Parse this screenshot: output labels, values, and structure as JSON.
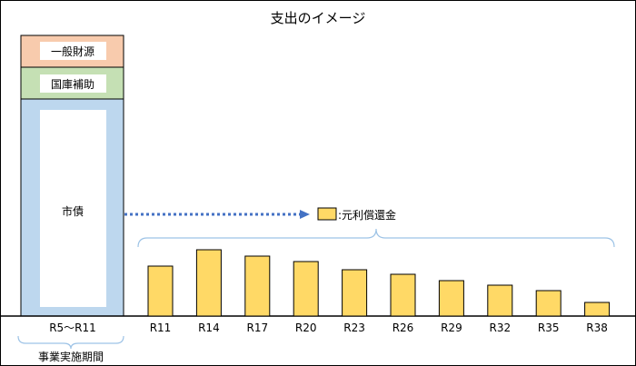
{
  "title": "支出のイメージ",
  "funding": {
    "segments": [
      {
        "label": "一般財源",
        "color": "#f8cbad"
      },
      {
        "label": "国庫補助",
        "color": "#c5e0b4"
      },
      {
        "label": "市債",
        "color": "#bdd7ee"
      }
    ],
    "period_label": "R5～R11",
    "caption": "事業実施期間"
  },
  "legend": {
    "label": ":元利償還金",
    "color": "#ffd966"
  },
  "chart_data": {
    "type": "bar",
    "categories": [
      "R11",
      "R14",
      "R17",
      "R20",
      "R23",
      "R26",
      "R29",
      "R32",
      "R35",
      "R38"
    ],
    "values": [
      55,
      73,
      66,
      60,
      51,
      46,
      39,
      34,
      28,
      15
    ],
    "series": [
      {
        "name": "元利償還金",
        "values": [
          55,
          73,
          66,
          60,
          51,
          46,
          39,
          34,
          28,
          15
        ]
      }
    ],
    "ylim": [
      0,
      100
    ],
    "grid": false,
    "bar_color": "#ffd966",
    "title": "支出のイメージ"
  },
  "colors": {
    "arrow": "#4472c4",
    "brace": "#9dc3e6",
    "border": "#000000"
  }
}
